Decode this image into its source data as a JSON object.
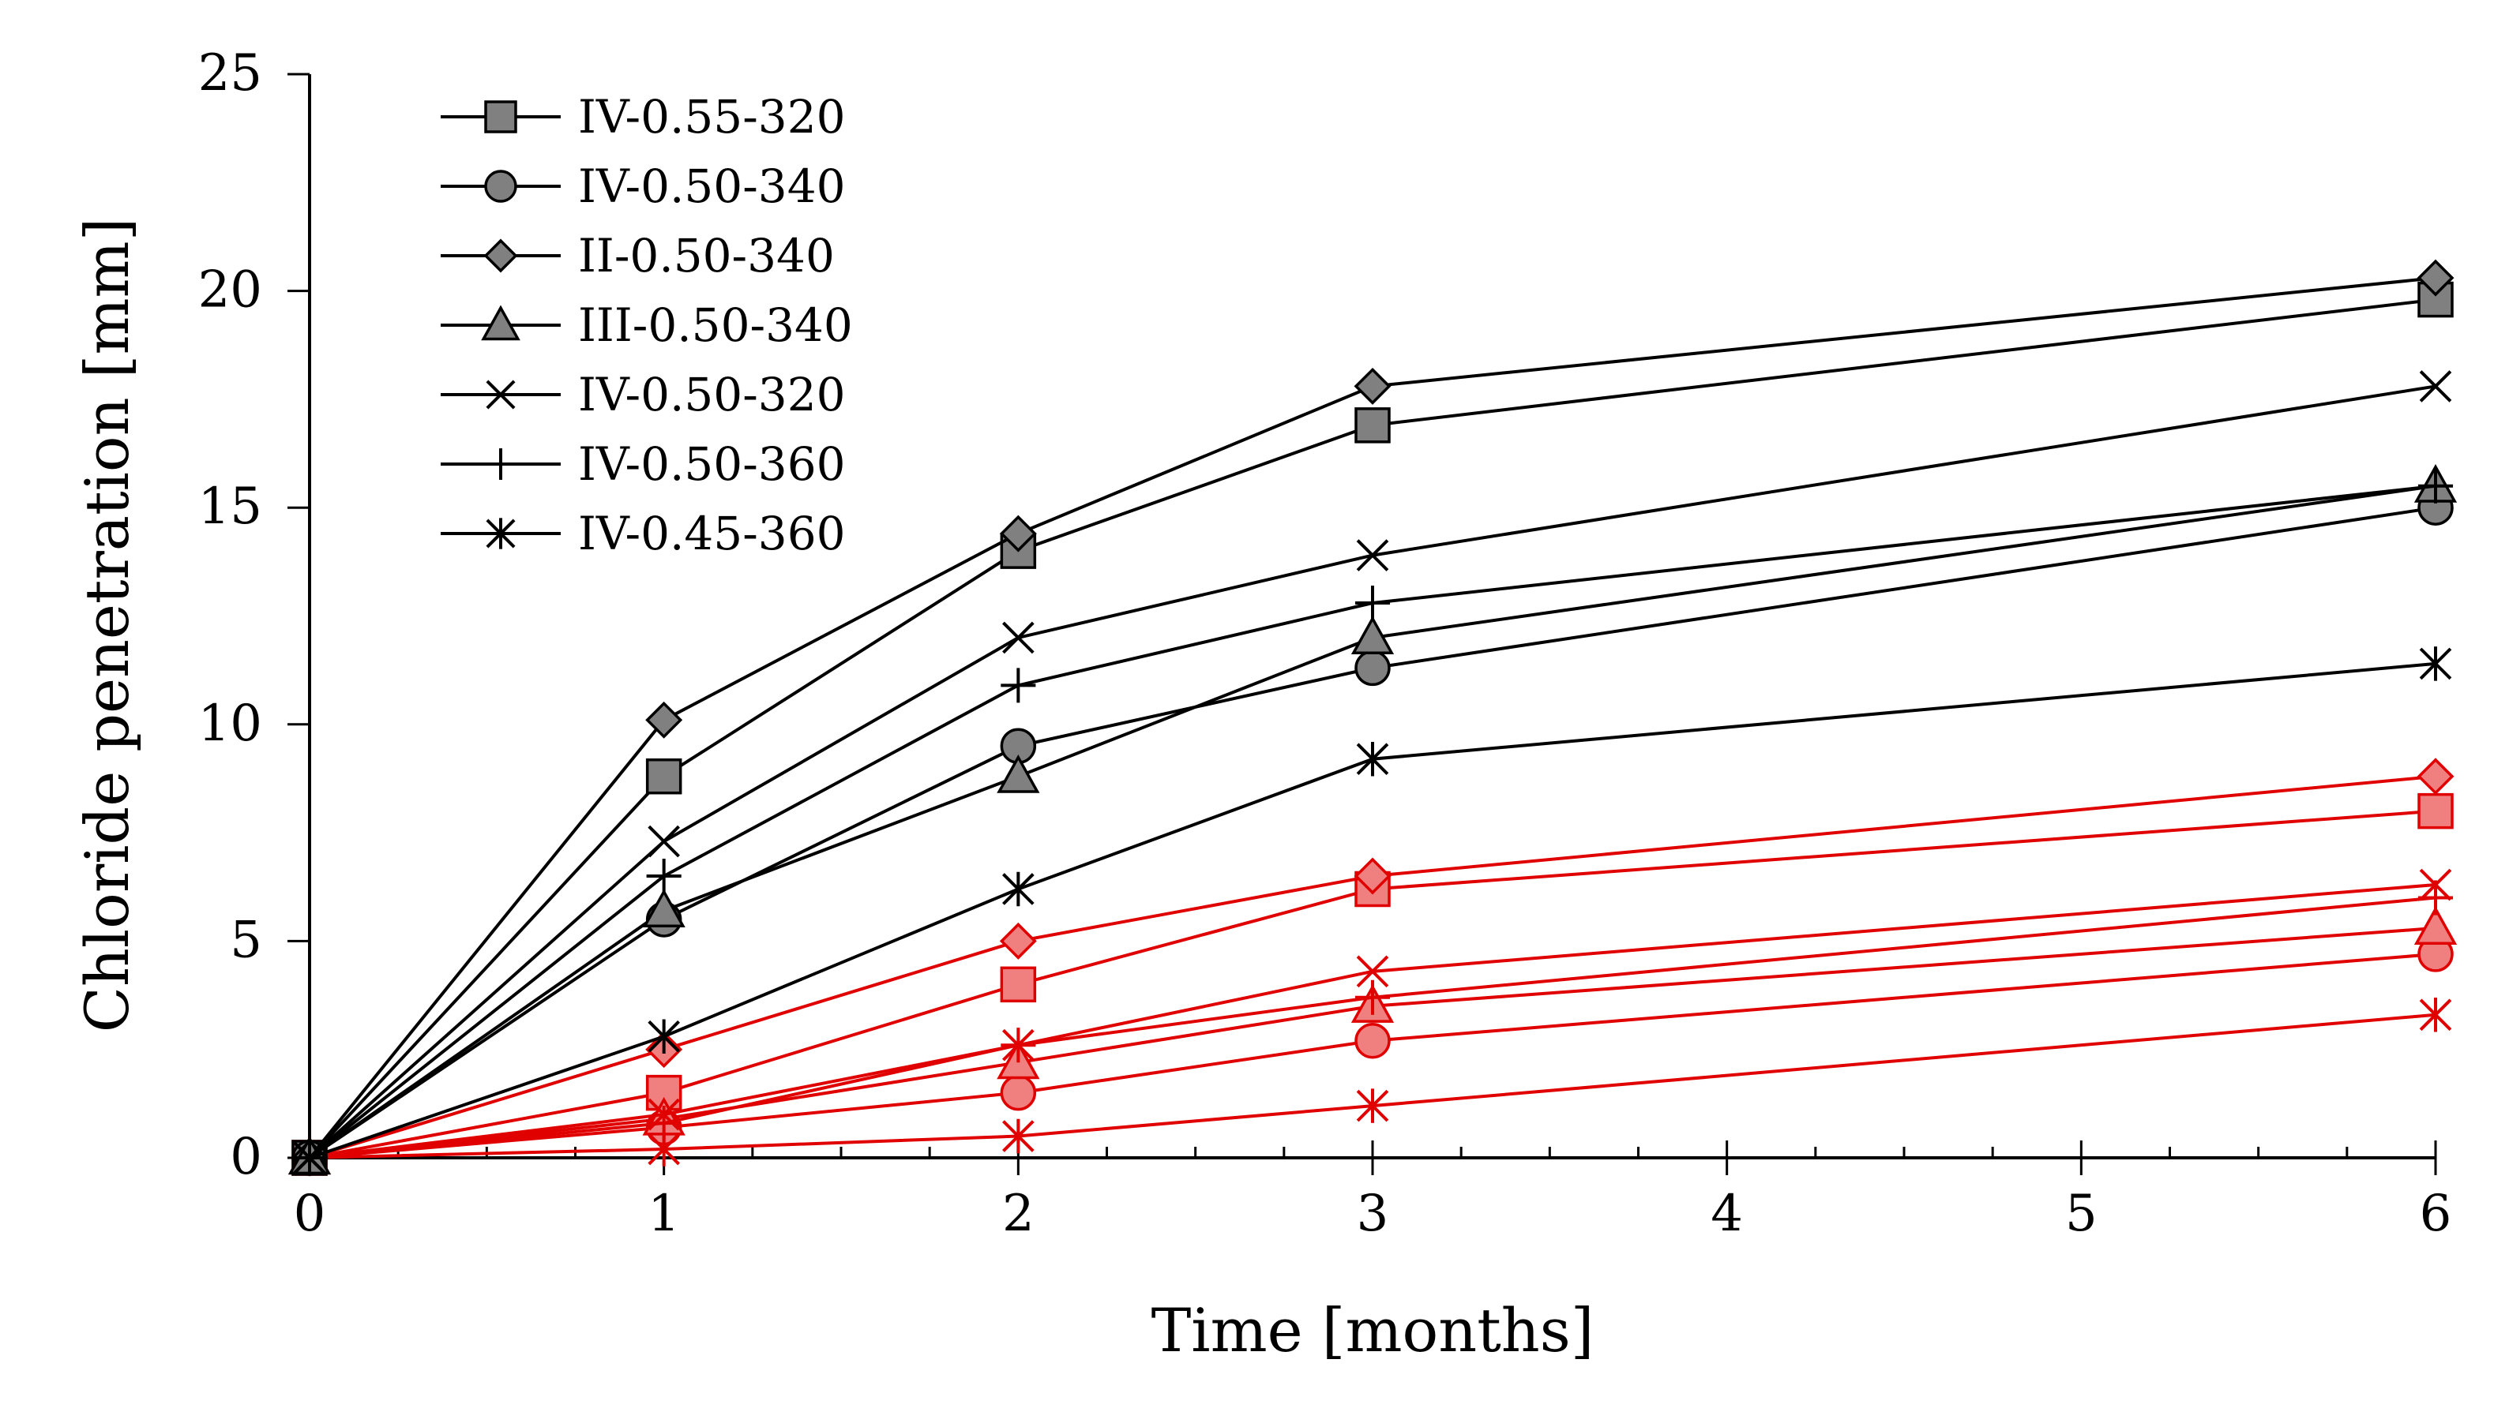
{
  "chart_data": {
    "type": "line",
    "xlabel": "Time [months]",
    "ylabel": "Chloride penetration [mm]",
    "xlim": [
      0,
      6
    ],
    "ylim": [
      0,
      25
    ],
    "xticks": [
      "0",
      "1",
      "2",
      "3",
      "4",
      "5",
      "6"
    ],
    "yticks": [
      "0",
      "5",
      "10",
      "15",
      "20",
      "25"
    ],
    "x": [
      0,
      1,
      2,
      3,
      6
    ],
    "grid": false,
    "legend_position": "top-left",
    "colors": {
      "black_series_line": "#000000",
      "black_series_marker_fill": "#808080",
      "red_series_line": "#e00000",
      "red_series_marker_fill": "#f08080"
    },
    "series": [
      {
        "name": "IV-0.55-320",
        "marker": "square",
        "group": "black",
        "values": [
          0,
          8.8,
          14.0,
          16.9,
          19.8
        ]
      },
      {
        "name": "IV-0.50-340",
        "marker": "circle",
        "group": "black",
        "values": [
          0,
          5.5,
          9.5,
          11.3,
          15.0
        ]
      },
      {
        "name": "II-0.50-340",
        "marker": "diamond",
        "group": "black",
        "values": [
          0,
          10.1,
          14.4,
          17.8,
          20.3
        ]
      },
      {
        "name": "III-0.50-340",
        "marker": "triangle",
        "group": "black",
        "values": [
          0,
          5.7,
          8.8,
          12.0,
          15.5
        ]
      },
      {
        "name": "IV-0.50-320",
        "marker": "x",
        "group": "black",
        "values": [
          0,
          7.3,
          12.0,
          13.9,
          17.8
        ]
      },
      {
        "name": "IV-0.50-360",
        "marker": "plus",
        "group": "black",
        "values": [
          0,
          6.5,
          10.9,
          12.8,
          15.5
        ]
      },
      {
        "name": "IV-0.45-360",
        "marker": "asterisk",
        "group": "black",
        "values": [
          0,
          2.8,
          6.2,
          9.2,
          11.4
        ]
      },
      {
        "marker": "square",
        "group": "red",
        "values": [
          0,
          1.5,
          4.0,
          6.2,
          8.0
        ]
      },
      {
        "marker": "circle",
        "group": "red",
        "values": [
          0,
          0.7,
          1.5,
          2.7,
          4.7
        ]
      },
      {
        "marker": "diamond",
        "group": "red",
        "values": [
          0,
          2.5,
          5.0,
          6.5,
          8.8
        ]
      },
      {
        "marker": "triangle",
        "group": "red",
        "values": [
          0,
          0.9,
          2.2,
          3.5,
          5.3
        ]
      },
      {
        "marker": "x",
        "group": "red",
        "values": [
          0,
          1.0,
          2.6,
          4.3,
          6.3
        ]
      },
      {
        "marker": "plus",
        "group": "red",
        "values": [
          0,
          0.8,
          2.6,
          3.7,
          6.0
        ]
      },
      {
        "marker": "asterisk",
        "group": "red",
        "values": [
          0,
          0.2,
          0.5,
          1.2,
          3.3
        ]
      }
    ]
  }
}
